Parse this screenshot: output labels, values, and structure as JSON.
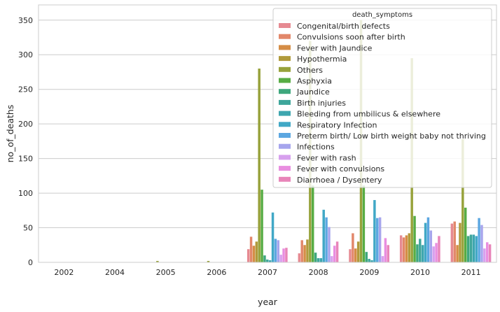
{
  "chart_data": {
    "type": "bar",
    "xlabel": "year",
    "ylabel": "no_of_deaths",
    "ylim": [
      0,
      372
    ],
    "yticks": [
      0,
      50,
      100,
      150,
      200,
      250,
      300,
      350
    ],
    "grid": "horizontal",
    "legend_title": "death_symptoms",
    "legend_position": "top-right",
    "categories": [
      "2002",
      "2004",
      "2005",
      "2006",
      "2007",
      "2008",
      "2009",
      "2010",
      "2011"
    ],
    "series": [
      {
        "name": "Congenital/birth defects",
        "color": "#e68a92",
        "values": [
          0,
          0,
          0,
          0,
          19,
          13,
          19,
          39,
          56
        ]
      },
      {
        "name": "Convulsions soon after birth",
        "color": "#e2876a",
        "values": [
          0,
          0,
          0,
          0,
          37,
          32,
          42,
          36,
          59
        ]
      },
      {
        "name": "Fever with Jaundice",
        "color": "#d58d46",
        "values": [
          0,
          0,
          0,
          0,
          24,
          25,
          20,
          39,
          25
        ]
      },
      {
        "name": "Hypothermia",
        "color": "#b09a3b",
        "values": [
          0,
          0,
          0,
          0,
          30,
          33,
          30,
          42,
          57
        ]
      },
      {
        "name": "Others",
        "color": "#97a23b",
        "values": [
          0,
          0,
          2,
          2,
          280,
          320,
          350,
          295,
          178
        ]
      },
      {
        "name": "Asphyxia",
        "color": "#57ac44",
        "values": [
          0,
          0,
          0,
          0,
          105,
          111,
          111,
          67,
          79
        ]
      },
      {
        "name": "Jaundice",
        "color": "#3ea77d",
        "values": [
          0,
          0,
          0,
          0,
          10,
          14,
          15,
          26,
          38
        ]
      },
      {
        "name": "Birth injuries",
        "color": "#3ea69b",
        "values": [
          0,
          0,
          0,
          0,
          4,
          6,
          5,
          34,
          40
        ]
      },
      {
        "name": "Bleeding from umbilicus & elsewhere",
        "color": "#3ea6af",
        "values": [
          0,
          0,
          0,
          0,
          3,
          6,
          3,
          25,
          40
        ]
      },
      {
        "name": "Respiratory Infection",
        "color": "#41a8c6",
        "values": [
          0,
          0,
          0,
          0,
          72,
          76,
          90,
          57,
          38
        ]
      },
      {
        "name": "Preterm birth/ Low birth weight baby not thriving",
        "color": "#5ca7e1",
        "values": [
          0,
          0,
          0,
          0,
          34,
          65,
          64,
          65,
          64
        ]
      },
      {
        "name": "Infections",
        "color": "#a6a5ed",
        "values": [
          0,
          0,
          0,
          0,
          32,
          51,
          65,
          46,
          54
        ]
      },
      {
        "name": "Fever with rash",
        "color": "#d7a0ee",
        "values": [
          0,
          0,
          0,
          0,
          11,
          9,
          9,
          23,
          20
        ]
      },
      {
        "name": "Fever with convulsions",
        "color": "#e98ee0",
        "values": [
          0,
          0,
          0,
          0,
          20,
          24,
          35,
          28,
          29
        ]
      },
      {
        "name": "Diarrhoea / Dysentery",
        "color": "#e885b9",
        "values": [
          0,
          0,
          0,
          0,
          21,
          30,
          25,
          38,
          26
        ]
      }
    ]
  }
}
